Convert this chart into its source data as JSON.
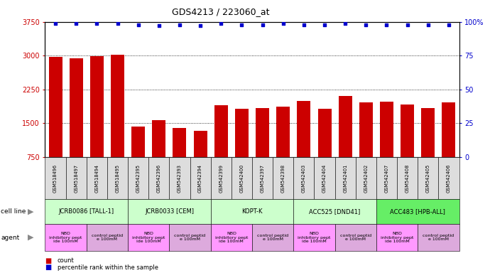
{
  "title": "GDS4213 / 223060_at",
  "samples": [
    "GSM518496",
    "GSM518497",
    "GSM518494",
    "GSM518495",
    "GSM542395",
    "GSM542396",
    "GSM542393",
    "GSM542394",
    "GSM542399",
    "GSM542400",
    "GSM542397",
    "GSM542398",
    "GSM542403",
    "GSM542404",
    "GSM542401",
    "GSM542402",
    "GSM542407",
    "GSM542408",
    "GSM542405",
    "GSM542406"
  ],
  "counts": [
    2980,
    2940,
    2990,
    3020,
    1430,
    1570,
    1390,
    1330,
    1900,
    1820,
    1840,
    1860,
    2000,
    1820,
    2100,
    1970,
    1980,
    1910,
    1840,
    1970
  ],
  "percentiles": [
    99,
    99,
    99,
    99,
    98,
    97,
    98,
    97,
    99,
    98,
    98,
    99,
    98,
    98,
    99,
    98,
    98,
    98,
    98,
    98
  ],
  "bar_color": "#cc0000",
  "dot_color": "#0000cc",
  "ylim_left": [
    750,
    3750
  ],
  "ylim_right": [
    0,
    100
  ],
  "yticks_left": [
    750,
    1500,
    2250,
    3000,
    3750
  ],
  "yticks_right": [
    0,
    25,
    50,
    75,
    100
  ],
  "cell_lines": [
    {
      "label": "JCRB0086 [TALL-1]",
      "start": 0,
      "end": 4,
      "color": "#ccffcc"
    },
    {
      "label": "JCRB0033 [CEM]",
      "start": 4,
      "end": 8,
      "color": "#ccffcc"
    },
    {
      "label": "KOPT-K",
      "start": 8,
      "end": 12,
      "color": "#ccffcc"
    },
    {
      "label": "ACC525 [DND41]",
      "start": 12,
      "end": 16,
      "color": "#ccffcc"
    },
    {
      "label": "ACC483 [HPB-ALL]",
      "start": 16,
      "end": 20,
      "color": "#66ee66"
    }
  ],
  "agents": [
    {
      "label": "NBD\ninhibitory pept\nide 100mM",
      "start": 0,
      "end": 2,
      "color": "#ff99ff"
    },
    {
      "label": "control peptid\ne 100mM",
      "start": 2,
      "end": 4,
      "color": "#ddaadd"
    },
    {
      "label": "NBD\ninhibitory pept\nide 100mM",
      "start": 4,
      "end": 6,
      "color": "#ff99ff"
    },
    {
      "label": "control peptid\ne 100mM",
      "start": 6,
      "end": 8,
      "color": "#ddaadd"
    },
    {
      "label": "NBD\ninhibitory pept\nide 100mM",
      "start": 8,
      "end": 10,
      "color": "#ff99ff"
    },
    {
      "label": "control peptid\ne 100mM",
      "start": 10,
      "end": 12,
      "color": "#ddaadd"
    },
    {
      "label": "NBD\ninhibitory pept\nide 100mM",
      "start": 12,
      "end": 14,
      "color": "#ff99ff"
    },
    {
      "label": "control peptid\ne 100mM",
      "start": 14,
      "end": 16,
      "color": "#ddaadd"
    },
    {
      "label": "NBD\ninhibitory pept\nide 100mM",
      "start": 16,
      "end": 18,
      "color": "#ff99ff"
    },
    {
      "label": "control peptid\ne 100mM",
      "start": 18,
      "end": 20,
      "color": "#ddaadd"
    }
  ],
  "legend_count_color": "#cc0000",
  "legend_pct_color": "#0000cc",
  "bg_color": "#ffffff",
  "xtick_bg": "#dddddd"
}
